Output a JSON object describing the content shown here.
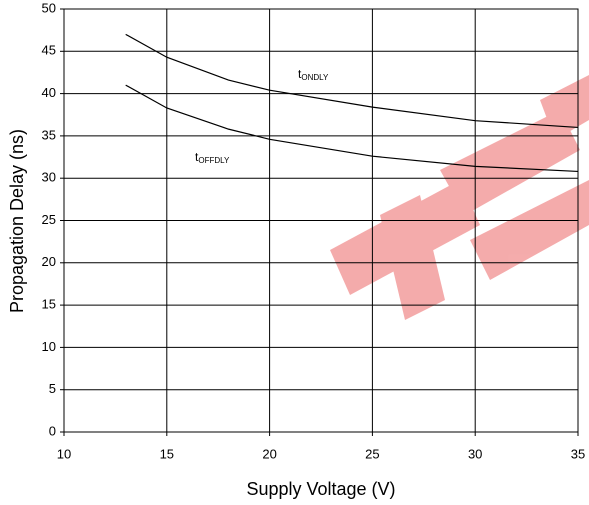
{
  "chart_data": {
    "type": "line",
    "x_label": "Supply Voltage (V)",
    "y_label": "Propagation Delay (ns)",
    "x": [
      13,
      15,
      18,
      20,
      25,
      30,
      35
    ],
    "series": [
      {
        "label": "t",
        "label_sub": "ONDLY",
        "color": "#000000",
        "values": [
          47,
          44.3,
          41.6,
          40.4,
          38.4,
          36.8,
          36.0
        ]
      },
      {
        "label": "t",
        "label_sub": "OFFDLY",
        "color": "#000000",
        "values": [
          41,
          38.3,
          35.8,
          34.6,
          32.6,
          31.4,
          30.8
        ]
      }
    ],
    "xlim": [
      10,
      35
    ],
    "xticks": [
      10,
      15,
      20,
      25,
      30,
      35
    ],
    "ylim": [
      0,
      50
    ],
    "yticks": [
      0,
      5,
      10,
      15,
      20,
      25,
      30,
      35,
      40,
      45,
      50
    ],
    "grid": true
  }
}
